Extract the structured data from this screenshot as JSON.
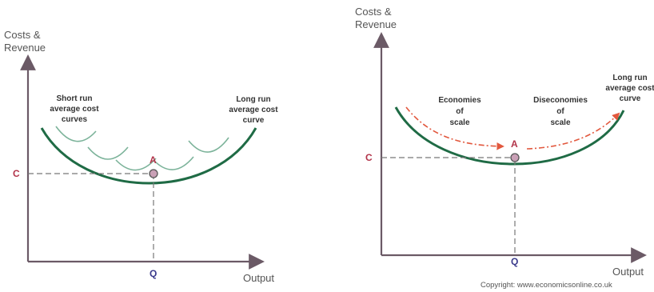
{
  "left_diagram": {
    "y_axis_label": [
      "Costs &",
      "Revenue"
    ],
    "x_axis_label": "Output",
    "price_label": "C",
    "quantity_label": "Q",
    "point_label": "A",
    "srac_label": [
      "Short run",
      "average cost",
      "curves"
    ],
    "lrac_label": [
      "Long run",
      "average cost",
      "curve"
    ]
  },
  "right_diagram": {
    "y_axis_label": [
      "Costs &",
      "Revenue"
    ],
    "x_axis_label": "Output",
    "price_label": "C",
    "quantity_label": "Q",
    "point_label": "A",
    "economies_label": [
      "Economies",
      "of",
      "scale"
    ],
    "diseconomies_label": [
      "Diseconomies",
      "of",
      "scale"
    ],
    "lrac_label": [
      "Long run",
      "average cost",
      "curve"
    ]
  },
  "copyright": "Copyright: www.economicsonline.co.uk",
  "colors": {
    "axis": "#6b5a66",
    "lrac": "#1f6b45",
    "srac": "#7cb39a",
    "label_red": "#b2344a",
    "label_blue": "#3a3a8c",
    "point_fill": "#c9a0b6",
    "arrow": "#e2583e"
  }
}
